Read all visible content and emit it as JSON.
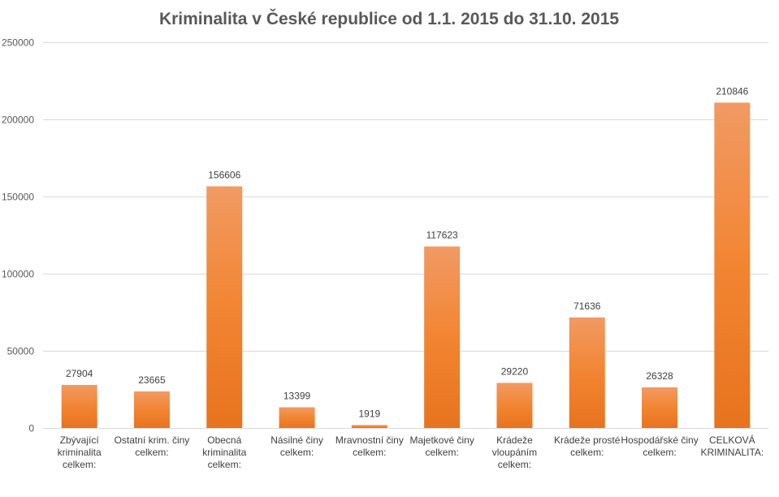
{
  "chart_data": {
    "type": "bar",
    "title": "Kriminalita v České republice od 1.1. 2015 do 31.10. 2015",
    "xlabel": "",
    "ylabel": "",
    "ylim": [
      0,
      250000
    ],
    "yticks": [
      0,
      50000,
      100000,
      150000,
      200000,
      250000
    ],
    "ytick_labels": [
      "0",
      "50000",
      "100000",
      "150000",
      "200000",
      "250000"
    ],
    "grid": true,
    "legend": "none",
    "categories": [
      [
        "Zbývající",
        "kriminalita",
        "celkem:"
      ],
      [
        "Ostatní krim. činy",
        "celkem:"
      ],
      [
        "Obecná",
        "kriminalita",
        "celkem:"
      ],
      [
        "Násilné činy",
        "celkem:"
      ],
      [
        "Mravnostní činy",
        "celkem:"
      ],
      [
        "Majetkové činy",
        "celkem:"
      ],
      [
        "Krádeže",
        "vloupáním",
        "celkem:"
      ],
      [
        "Krádeže prosté",
        "celkem:"
      ],
      [
        "Hospodářské činy",
        "celkem:"
      ],
      [
        "CELKOVÁ",
        "KRIMINALITA:"
      ]
    ],
    "values": [
      27904,
      23665,
      156606,
      13399,
      1919,
      117623,
      29220,
      71636,
      26328,
      210846
    ],
    "data_labels": [
      "27904",
      "23665",
      "156606",
      "13399",
      "1919",
      "117623",
      "29220",
      "71636",
      "26328",
      "210846"
    ],
    "bar_color_top": "#f19a63",
    "bar_color_mid": "#f28532",
    "bar_color_bottom": "#e8731e"
  }
}
